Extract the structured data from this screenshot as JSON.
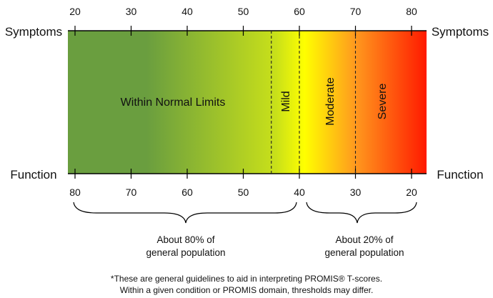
{
  "axes": {
    "symptoms_label": "Symptoms",
    "function_label": "Function",
    "symptoms_ticks": [
      "20",
      "30",
      "40",
      "50",
      "60",
      "70",
      "80"
    ],
    "function_ticks": [
      "80",
      "70",
      "60",
      "50",
      "40",
      "30",
      "20"
    ]
  },
  "zones": {
    "normal": "Within Normal Limits",
    "mild": "Mild",
    "moderate": "Moderate",
    "severe": "Severe"
  },
  "thresholds": {
    "symptoms_t_scores": [
      55,
      60,
      70
    ]
  },
  "populations": {
    "left": {
      "line1": "About 80% of",
      "line2": "general population"
    },
    "right": {
      "line1": "About 20% of",
      "line2": "general population"
    }
  },
  "footnote": {
    "line1": "*These are general guidelines to aid in interpreting PROMIS® T-scores.",
    "line2": "Within a given condition or PROMIS domain, thresholds may differ."
  },
  "colors": {
    "green": "#6a9e3f",
    "yellow_green": "#c8e01a",
    "yellow": "#ffff00",
    "orange": "#ff9a1e",
    "red": "#ff1a00"
  }
}
